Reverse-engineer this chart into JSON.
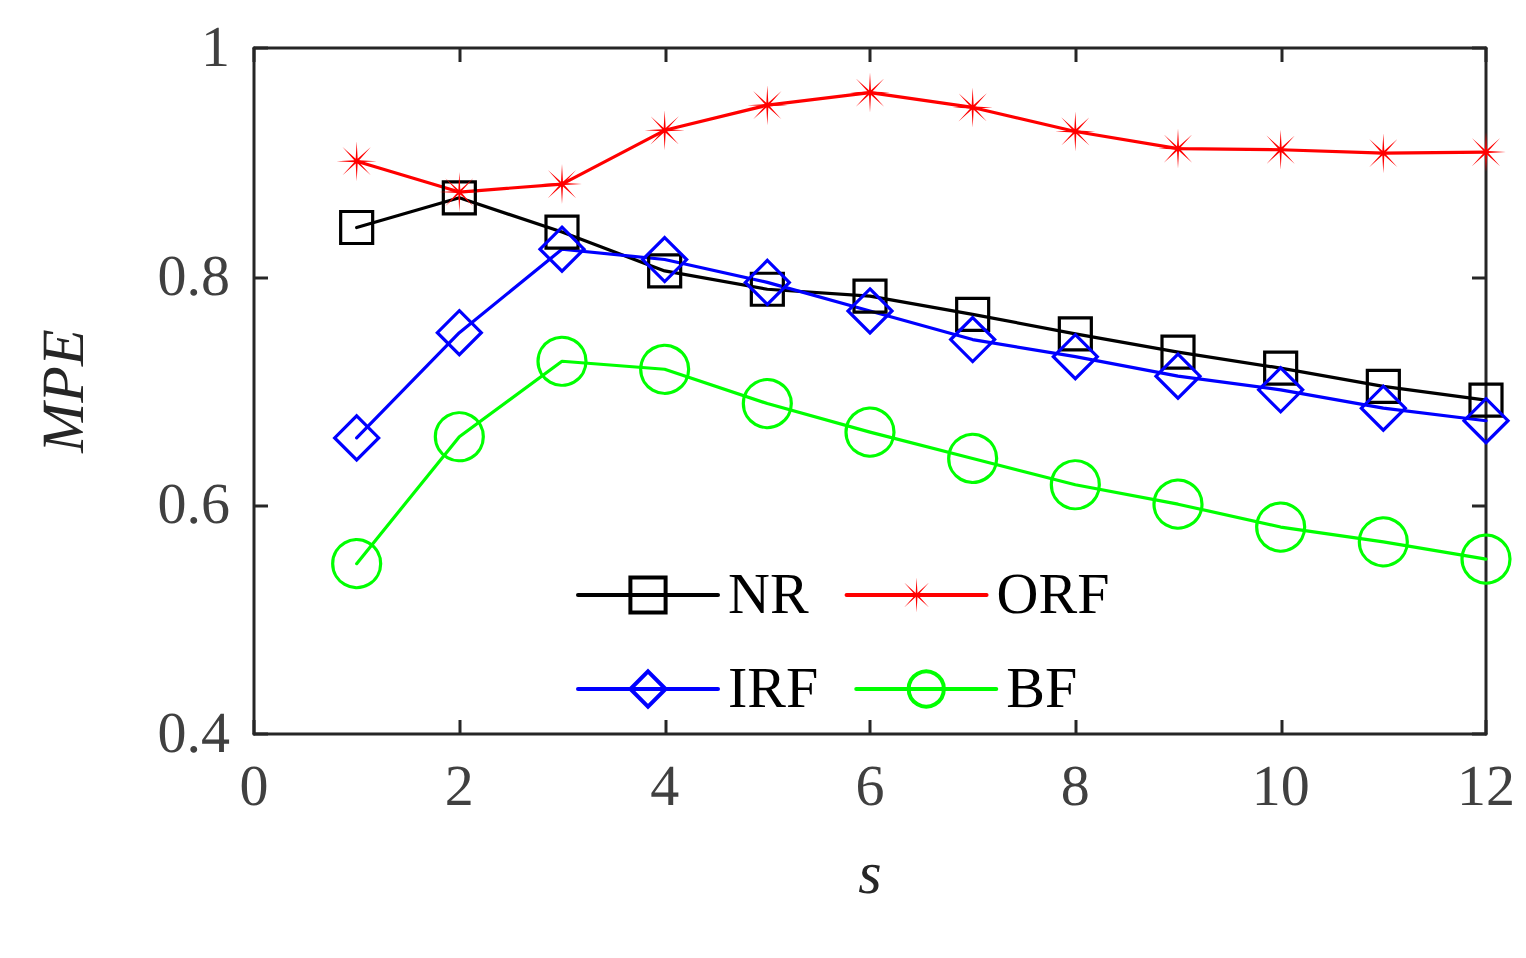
{
  "chart_data": {
    "type": "line",
    "xlabel": "s",
    "ylabel": "MPE",
    "x": [
      1,
      2,
      3,
      4,
      5,
      6,
      7,
      8,
      9,
      10,
      11,
      12
    ],
    "series": [
      {
        "name": "NR",
        "color": "#000000",
        "marker": "square",
        "values": [
          0.843,
          0.869,
          0.839,
          0.805,
          0.789,
          0.783,
          0.767,
          0.75,
          0.734,
          0.72,
          0.704,
          0.692
        ]
      },
      {
        "name": "ORF",
        "color": "#ff0000",
        "marker": "star",
        "values": [
          0.901,
          0.874,
          0.881,
          0.928,
          0.95,
          0.961,
          0.948,
          0.927,
          0.912,
          0.911,
          0.908,
          0.909
        ]
      },
      {
        "name": "IRF",
        "color": "#0000ff",
        "marker": "diamond",
        "values": [
          0.659,
          0.751,
          0.824,
          0.815,
          0.795,
          0.77,
          0.745,
          0.73,
          0.713,
          0.701,
          0.685,
          0.674
        ]
      },
      {
        "name": "BF",
        "color": "#00ff00",
        "marker": "circle",
        "values": [
          0.549,
          0.66,
          0.726,
          0.719,
          0.689,
          0.664,
          0.641,
          0.618,
          0.601,
          0.581,
          0.568,
          0.553
        ]
      }
    ],
    "xlim": [
      0,
      12
    ],
    "xticks": [
      0,
      2,
      4,
      6,
      8,
      10,
      12
    ],
    "ylim": [
      0.4,
      1
    ],
    "yticks": [
      0.4,
      0.6,
      0.8,
      1
    ],
    "grid": false,
    "legend": "bottom",
    "line_style": "solid"
  }
}
